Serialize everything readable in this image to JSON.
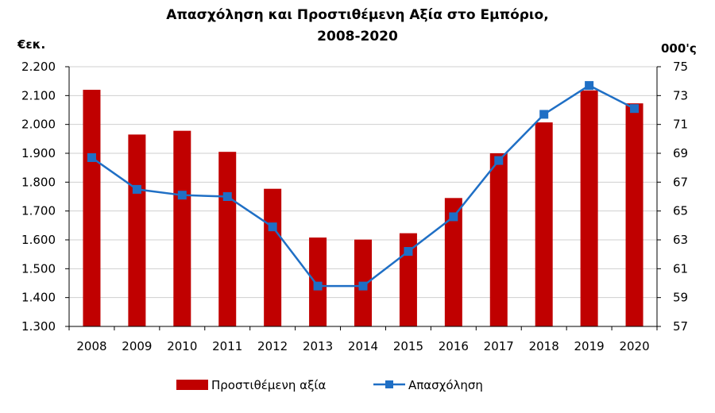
{
  "chart_data": {
    "type": "bar+line",
    "title_line1": "Απασχόληση και Προστιθέμενη Αξία στο Εμπόριο,",
    "title_line2": "2008-2020",
    "left_unit": "€εκ.",
    "right_unit": "000'ς",
    "categories": [
      "2008",
      "2009",
      "2010",
      "2011",
      "2012",
      "2013",
      "2014",
      "2015",
      "2016",
      "2017",
      "2018",
      "2019",
      "2020"
    ],
    "left_axis": {
      "min": 1300,
      "max": 2200,
      "ticks": [
        "2.200",
        "2.100",
        "2.000",
        "1.900",
        "1.800",
        "1.700",
        "1.600",
        "1.500",
        "1.400",
        "1.300"
      ]
    },
    "right_axis": {
      "min": 57,
      "max": 75,
      "ticks": [
        "75",
        "73",
        "71",
        "69",
        "67",
        "65",
        "63",
        "61",
        "59",
        "57"
      ]
    },
    "series": [
      {
        "name": "Προστιθέμενη αξία",
        "type": "bar",
        "axis": "left",
        "color": "#c00000",
        "values": [
          2120,
          1965,
          1978,
          1905,
          1777,
          1608,
          1601,
          1623,
          1745,
          1900,
          2007,
          2118,
          2073
        ]
      },
      {
        "name": "Απασχόληση",
        "type": "line",
        "axis": "right",
        "color": "#1f6fc5",
        "values": [
          68.7,
          66.5,
          66.1,
          66.0,
          63.9,
          59.8,
          59.8,
          62.2,
          64.6,
          68.5,
          71.7,
          73.7,
          72.1
        ]
      }
    ],
    "grid": true,
    "legend_position": "bottom"
  }
}
